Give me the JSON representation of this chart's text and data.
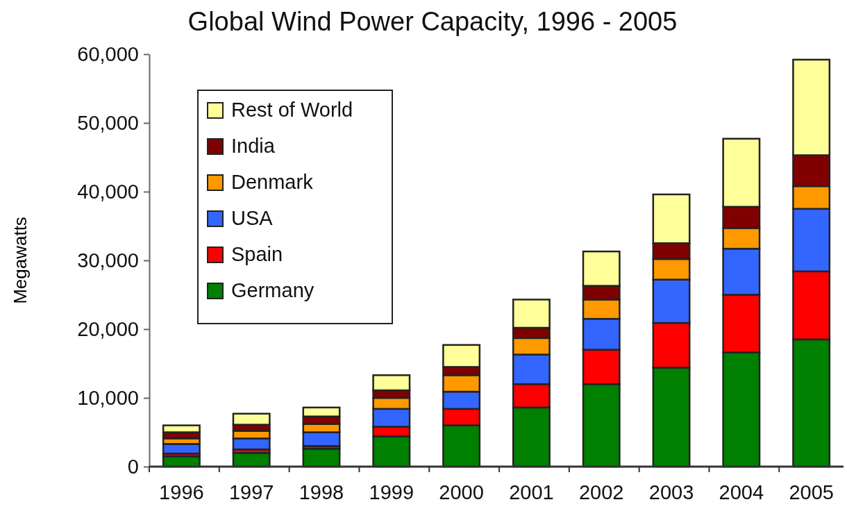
{
  "chart_data": {
    "type": "bar",
    "title": "Global Wind Power Capacity, 1996 - 2005",
    "ylabel": "Megawatts",
    "categories": [
      "1996",
      "1997",
      "1998",
      "1999",
      "2000",
      "2001",
      "2002",
      "2003",
      "2004",
      "2005"
    ],
    "stacked": true,
    "legend": "top left",
    "grid": false,
    "ylim": [
      0,
      60000
    ],
    "yticks": [
      {
        "value": 0,
        "label": "0"
      },
      {
        "value": 10000,
        "label": "10,000"
      },
      {
        "value": 20000,
        "label": "20,000"
      },
      {
        "value": 30000,
        "label": "30,000"
      },
      {
        "value": 40000,
        "label": "40,000"
      },
      {
        "value": 50000,
        "label": "50,000"
      },
      {
        "value": 60000,
        "label": "60,000"
      }
    ],
    "series": [
      {
        "name": "Germany",
        "color": "#008000",
        "values": [
          1500,
          2000,
          2600,
          4400,
          6000,
          8600,
          12000,
          14400,
          16600,
          18500
        ]
      },
      {
        "name": "Spain",
        "color": "#ff0000",
        "values": [
          400,
          500,
          400,
          1400,
          2400,
          3400,
          5000,
          6500,
          8400,
          9900
        ]
      },
      {
        "name": "USA",
        "color": "#3366ff",
        "values": [
          1400,
          1600,
          2000,
          2600,
          2500,
          4300,
          4500,
          6300,
          6700,
          9100
        ]
      },
      {
        "name": "Denmark",
        "color": "#ff9900",
        "values": [
          800,
          1100,
          1200,
          1600,
          2400,
          2400,
          2800,
          3000,
          3000,
          3300
        ]
      },
      {
        "name": "India",
        "color": "#800000",
        "values": [
          900,
          900,
          1100,
          1100,
          1200,
          1500,
          2000,
          2300,
          3100,
          4500
        ]
      },
      {
        "name": "Rest of World",
        "color": "#ffff99",
        "values": [
          1000,
          1600,
          1300,
          2200,
          3200,
          4100,
          5000,
          7100,
          9900,
          13900
        ]
      }
    ]
  }
}
